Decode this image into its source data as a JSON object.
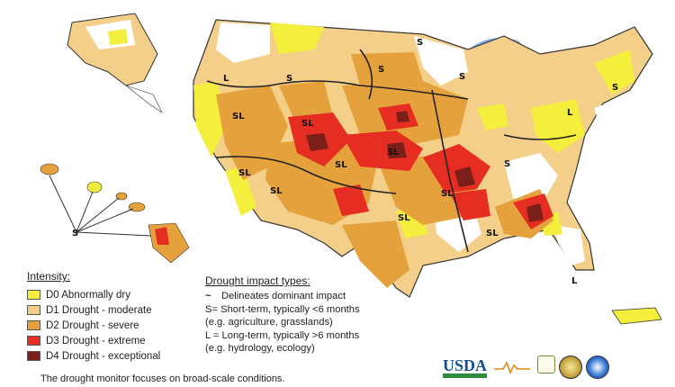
{
  "colors": {
    "D0": "#f4ef3c",
    "D1": "#f4cf8a",
    "D2": "#e5a23c",
    "D3": "#e52d22",
    "D4": "#7a1f1a",
    "water": "#7fb0e5",
    "outline": "#333333"
  },
  "legend": {
    "title": "Intensity:",
    "items": [
      {
        "code": "D0",
        "label": "D0 Abnormally dry"
      },
      {
        "code": "D1",
        "label": "D1 Drought - moderate"
      },
      {
        "code": "D2",
        "label": "D2 Drought - severe"
      },
      {
        "code": "D3",
        "label": "D3 Drought - extreme"
      },
      {
        "code": "D4",
        "label": "D4 Drought - exceptional"
      }
    ]
  },
  "impact": {
    "title": "Drought impact types:",
    "lines": [
      "Delineates dominant impact",
      "S= Short-term, typically <6 months",
      "(e.g. agriculture, grasslands)",
      "L = Long-term, typically >6 months",
      "(e.g. hydrology, ecology)"
    ],
    "tilde": "~"
  },
  "footer": "The drought monitor focuses on broad-scale conditions.",
  "map_labels": [
    "S",
    "S",
    "L",
    "S",
    "S",
    "SL",
    "SL",
    "SL",
    "SL",
    "SL",
    "SL",
    "SL",
    "S",
    "SL",
    "SL",
    "L",
    "S",
    "L",
    "S"
  ],
  "logos": {
    "usda": "USDA"
  }
}
